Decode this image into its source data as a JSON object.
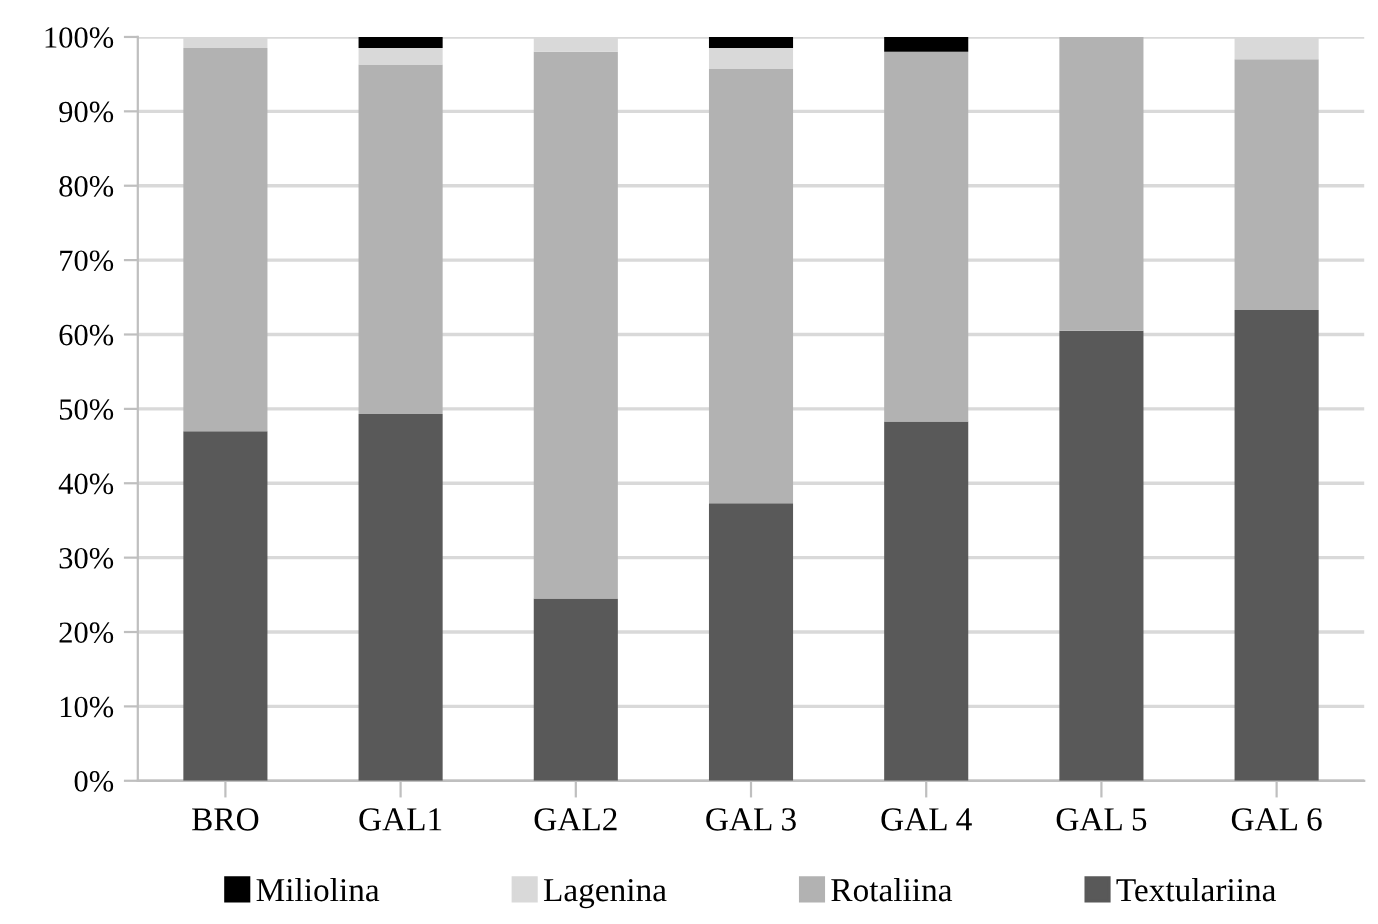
{
  "chart_data": {
    "type": "bar",
    "stacked": true,
    "categories": [
      "BRO",
      "GAL1",
      "GAL2",
      "GAL 3",
      "GAL 4",
      "GAL 5",
      "GAL 6"
    ],
    "series": [
      {
        "name": "Textulariina",
        "color": "#595959",
        "values": [
          47,
          49.3,
          24.5,
          37.3,
          48.3,
          60.5,
          63.3
        ]
      },
      {
        "name": "Rotaliina",
        "color": "#b2b2b2",
        "values": [
          51.5,
          47,
          73.5,
          58.4,
          49.7,
          39.5,
          33.7
        ]
      },
      {
        "name": "Lagenina",
        "color": "#d9d9d9",
        "values": [
          1.5,
          2.2,
          2,
          2.8,
          0,
          0,
          3
        ]
      },
      {
        "name": "Miliolina",
        "color": "#000000",
        "values": [
          0,
          1.5,
          0,
          1.5,
          2,
          0,
          0
        ]
      }
    ],
    "ylim": [
      0,
      100
    ],
    "yticks": [
      {
        "value": 0,
        "label": "0%"
      },
      {
        "value": 10,
        "label": "10%"
      },
      {
        "value": 20,
        "label": "20%"
      },
      {
        "value": 30,
        "label": "30%"
      },
      {
        "value": 40,
        "label": "40%"
      },
      {
        "value": 50,
        "label": "50%"
      },
      {
        "value": 60,
        "label": "60%"
      },
      {
        "value": 70,
        "label": "70%"
      },
      {
        "value": 80,
        "label": "80%"
      },
      {
        "value": 90,
        "label": "90%"
      },
      {
        "value": 100,
        "label": "100%"
      }
    ],
    "grid": "y",
    "legend": "bottom"
  }
}
